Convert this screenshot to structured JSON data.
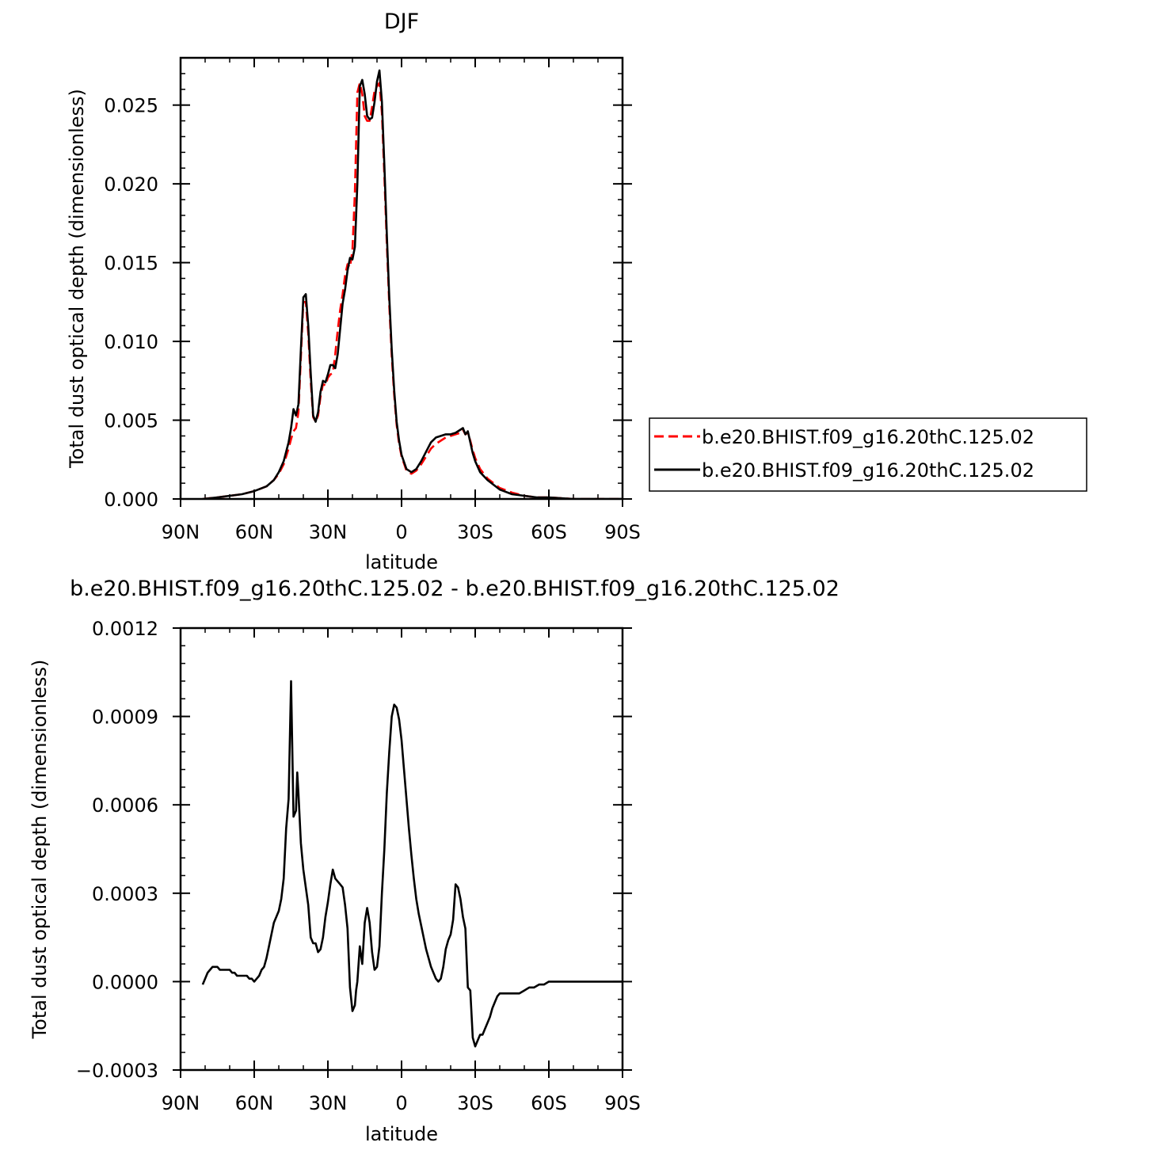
{
  "chart_data": [
    {
      "type": "line",
      "title": "DJF",
      "xlabel": "latitude",
      "ylabel": "Total dust optical depth (dimensionless)",
      "xlim": [
        90,
        -90
      ],
      "ylim": [
        0,
        0.028
      ],
      "x_ticks": [
        90,
        60,
        30,
        0,
        -30,
        -60,
        -90
      ],
      "x_tick_labels": [
        "90N",
        "60N",
        "30N",
        "0",
        "30S",
        "60S",
        "90S"
      ],
      "y_ticks": [
        0,
        0.005,
        0.01,
        0.015,
        0.02,
        0.025
      ],
      "y_tick_labels": [
        "0.000",
        "0.005",
        "0.010",
        "0.015",
        "0.020",
        "0.025"
      ],
      "legend_position": "right",
      "series": [
        {
          "name": "b.e20.BHIST.f09_g16.20thC.125.02",
          "color": "#ff0000",
          "dash": "dashed",
          "x": [
            81,
            75,
            70,
            65,
            60,
            55,
            52,
            50,
            48,
            46,
            45,
            44,
            43,
            42,
            41,
            40,
            39,
            38,
            37,
            36,
            35,
            34,
            33,
            32,
            31,
            30,
            29,
            28,
            27,
            26,
            25,
            24,
            23,
            22,
            21,
            20,
            19,
            18,
            17,
            16,
            15,
            14,
            13,
            12,
            11,
            10,
            9,
            8,
            7,
            6,
            5,
            4,
            3,
            2,
            1,
            0,
            -2,
            -4,
            -6,
            -8,
            -10,
            -12,
            -14,
            -16,
            -18,
            -20,
            -22,
            -24,
            -25,
            -26,
            -27,
            -28,
            -29,
            -30,
            -32,
            -35,
            -40,
            -45,
            -50,
            -55,
            -60,
            -70,
            -80,
            -90
          ],
          "y": [
            0.0,
            0.0001,
            0.0002,
            0.0003,
            0.0005,
            0.0008,
            0.0012,
            0.0016,
            0.0022,
            0.0032,
            0.0038,
            0.0043,
            0.0045,
            0.0055,
            0.009,
            0.0125,
            0.0125,
            0.0105,
            0.0075,
            0.0052,
            0.0049,
            0.0053,
            0.0065,
            0.0073,
            0.0072,
            0.0077,
            0.0079,
            0.008,
            0.0092,
            0.0107,
            0.012,
            0.013,
            0.0142,
            0.0149,
            0.0147,
            0.0158,
            0.0195,
            0.0258,
            0.0264,
            0.0257,
            0.0243,
            0.024,
            0.024,
            0.0249,
            0.0259,
            0.0262,
            0.0264,
            0.0245,
            0.0205,
            0.0162,
            0.0123,
            0.0091,
            0.0066,
            0.0047,
            0.0035,
            0.0027,
            0.0018,
            0.0016,
            0.0018,
            0.0022,
            0.0027,
            0.0032,
            0.0035,
            0.0037,
            0.0039,
            0.004,
            0.0041,
            0.0042,
            0.0044,
            0.0041,
            0.0042,
            0.0037,
            0.0031,
            0.0026,
            0.0019,
            0.0013,
            0.0007,
            0.0004,
            0.0002,
            0.0001,
            0.0001,
            0.0,
            0.0,
            0.0
          ]
        },
        {
          "name": "b.e20.BHIST.f09_g16.20thC.125.02",
          "color": "#000000",
          "dash": "solid",
          "x": [
            81,
            75,
            70,
            65,
            60,
            55,
            52,
            50,
            48,
            46,
            45,
            44,
            43,
            42,
            41,
            40,
            39,
            38,
            37,
            36,
            35,
            34,
            33,
            32,
            31,
            30,
            29,
            28,
            27,
            26,
            25,
            24,
            23,
            22,
            21,
            20,
            19,
            18,
            17,
            16,
            15,
            14,
            13,
            12,
            11,
            10,
            9,
            8,
            7,
            6,
            5,
            4,
            3,
            2,
            1,
            0,
            -2,
            -4,
            -6,
            -8,
            -10,
            -12,
            -14,
            -16,
            -18,
            -20,
            -22,
            -24,
            -25,
            -26,
            -27,
            -28,
            -29,
            -30,
            -32,
            -35,
            -40,
            -45,
            -50,
            -55,
            -60,
            -70,
            -80,
            -90
          ],
          "y": [
            0.0,
            0.0001,
            0.0002,
            0.0003,
            0.0005,
            0.0008,
            0.0012,
            0.0017,
            0.0024,
            0.0036,
            0.0045,
            0.0057,
            0.0053,
            0.006,
            0.0095,
            0.0128,
            0.013,
            0.011,
            0.008,
            0.0053,
            0.0049,
            0.0055,
            0.0068,
            0.0075,
            0.0074,
            0.0079,
            0.0085,
            0.0085,
            0.0083,
            0.0092,
            0.0108,
            0.0124,
            0.0133,
            0.0145,
            0.0153,
            0.0152,
            0.016,
            0.02,
            0.0262,
            0.0266,
            0.0257,
            0.0243,
            0.0241,
            0.0242,
            0.0252,
            0.0265,
            0.0272,
            0.0252,
            0.0212,
            0.0168,
            0.0128,
            0.0095,
            0.0069,
            0.0049,
            0.0037,
            0.0028,
            0.0019,
            0.0017,
            0.0019,
            0.0024,
            0.003,
            0.0036,
            0.0039,
            0.004,
            0.0041,
            0.0041,
            0.0042,
            0.0044,
            0.0045,
            0.0041,
            0.0043,
            0.0036,
            0.0029,
            0.0024,
            0.0017,
            0.0012,
            0.0006,
            0.0003,
            0.0002,
            0.0001,
            0.0001,
            0.0,
            0.0,
            0.0
          ]
        }
      ]
    },
    {
      "type": "line",
      "title": "b.e20.BHIST.f09_g16.20thC.125.02 - b.e20.BHIST.f09_g16.20thC.125.02",
      "xlabel": "latitude",
      "ylabel": "Total dust optical depth (dimensionless)",
      "xlim": [
        90,
        -90
      ],
      "ylim": [
        -0.0003,
        0.0012
      ],
      "x_ticks": [
        90,
        60,
        30,
        0,
        -30,
        -60,
        -90
      ],
      "x_tick_labels": [
        "90N",
        "60N",
        "30N",
        "0",
        "30S",
        "60S",
        "90S"
      ],
      "y_ticks": [
        -0.0003,
        0,
        0.0003,
        0.0006,
        0.0009,
        0.0012
      ],
      "y_tick_labels": [
        "−0.0003",
        "0.0000",
        "0.0003",
        "0.0006",
        "0.0009",
        "0.0012"
      ],
      "series": [
        {
          "color": "#000000",
          "dash": "solid",
          "x": [
            81,
            80,
            79,
            78,
            77,
            76,
            75,
            74,
            73,
            72,
            71,
            70,
            69,
            68,
            67,
            66,
            65,
            64,
            63,
            62,
            61,
            60,
            59,
            58,
            57,
            56,
            55,
            54,
            53,
            52,
            51,
            50,
            49,
            48,
            47,
            46,
            45,
            44,
            43,
            42.5,
            42,
            41,
            40,
            39,
            38,
            37,
            36,
            35,
            34,
            33,
            32,
            31,
            30,
            29,
            28,
            27,
            26,
            25,
            24,
            23,
            22,
            21,
            20,
            19,
            18.5,
            18,
            17,
            16,
            15,
            14,
            13,
            12,
            11,
            10,
            9,
            8,
            7,
            6,
            5,
            4,
            3,
            2,
            1,
            0,
            -1,
            -2,
            -3,
            -4,
            -5,
            -6,
            -7,
            -8,
            -9,
            -10,
            -11,
            -12,
            -13,
            -14,
            -15,
            -16,
            -17,
            -18,
            -19,
            -20,
            -21,
            -22,
            -23,
            -24,
            -25,
            -26,
            -27,
            -28,
            -29,
            -30,
            -31,
            -32,
            -33,
            -34,
            -35,
            -36,
            -37,
            -38,
            -39,
            -40,
            -41,
            -42,
            -43,
            -44,
            -45,
            -46,
            -47,
            -48,
            -50,
            -52,
            -54,
            -56,
            -58,
            -60,
            -65,
            -70,
            -80,
            -90
          ],
          "y": [
            -1e-05,
            1e-05,
            3e-05,
            4e-05,
            5e-05,
            5e-05,
            5e-05,
            4e-05,
            4e-05,
            4e-05,
            4e-05,
            4e-05,
            3e-05,
            3e-05,
            2e-05,
            2e-05,
            2e-05,
            2e-05,
            2e-05,
            1e-05,
            1e-05,
            0.0,
            1e-05,
            2e-05,
            4e-05,
            5e-05,
            8e-05,
            0.00012,
            0.00016,
            0.0002,
            0.00022,
            0.00024,
            0.00028,
            0.00035,
            0.00052,
            0.00062,
            0.00102,
            0.00056,
            0.00058,
            0.00071,
            0.00064,
            0.00047,
            0.00038,
            0.00032,
            0.00026,
            0.00015,
            0.00013,
            0.00013,
            0.0001,
            0.00011,
            0.00015,
            0.00022,
            0.00027,
            0.00033,
            0.00038,
            0.00035,
            0.00034,
            0.00033,
            0.00032,
            0.00026,
            0.00018,
            -2e-05,
            -0.0001,
            -8e-05,
            -3e-05,
            0.0,
            0.00012,
            6e-05,
            0.0002,
            0.00025,
            0.0002,
            0.0001,
            4e-05,
            5e-05,
            0.00012,
            0.0003,
            0.00045,
            0.00064,
            0.00078,
            0.0009,
            0.00094,
            0.00093,
            0.00089,
            0.00082,
            0.00072,
            0.00062,
            0.00052,
            0.00043,
            0.00035,
            0.00028,
            0.00023,
            0.00019,
            0.00015,
            0.00011,
            8e-05,
            5e-05,
            3e-05,
            1e-05,
            0.0,
            1e-05,
            5e-05,
            0.00011,
            0.00014,
            0.00016,
            0.00021,
            0.00033,
            0.00032,
            0.00028,
            0.00022,
            0.00018,
            -2e-05,
            -3e-05,
            -0.00019,
            -0.00022,
            -0.0002,
            -0.00018,
            -0.00018,
            -0.00016,
            -0.00014,
            -0.00012,
            -9e-05,
            -7e-05,
            -5e-05,
            -4e-05,
            -4e-05,
            -4e-05,
            -4e-05,
            -4e-05,
            -4e-05,
            -4e-05,
            -4e-05,
            -4e-05,
            -3e-05,
            -2e-05,
            -2e-05,
            -1e-05,
            -1e-05,
            0.0,
            0.0,
            0.0,
            0.0,
            0.0
          ]
        }
      ]
    }
  ]
}
